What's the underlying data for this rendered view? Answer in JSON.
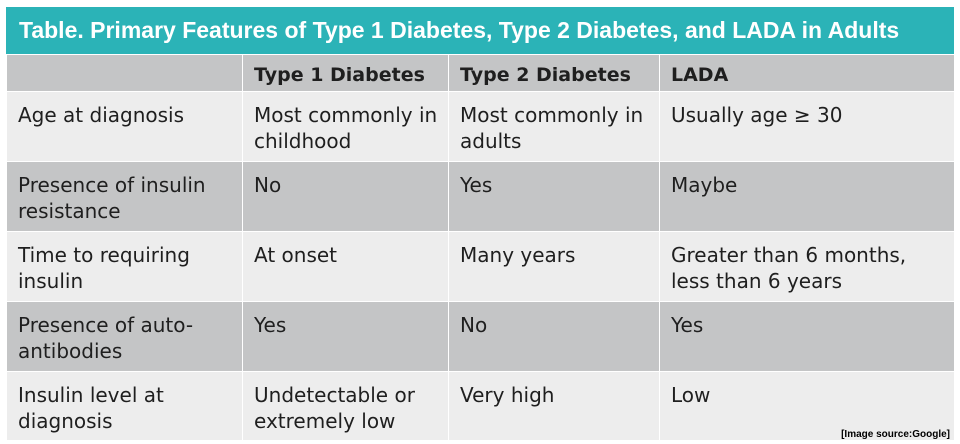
{
  "title": "Table. Primary Features of Type 1 Diabetes, Type 2 Diabetes, and LADA in Adults",
  "table": {
    "headers": [
      "",
      "Type 1 Diabetes",
      "Type 2 Diabetes",
      "LADA"
    ],
    "rows": [
      {
        "feature": "Age at diagnosis",
        "type1": "Most commonly in childhood",
        "type2": "Most commonly in adults",
        "lada": "Usually age ≥ 30"
      },
      {
        "feature": "Presence of insulin resistance",
        "type1": "No",
        "type2": "Yes",
        "lada": "Maybe"
      },
      {
        "feature": "Time to requiring insulin",
        "type1": "At onset",
        "type2": "Many years",
        "lada": "Greater than 6 months, less than 6 years"
      },
      {
        "feature": "Presence of auto-antibodies",
        "type1": "Yes",
        "type2": "No",
        "lada": "Yes"
      },
      {
        "feature": "Insulin level at diagnosis",
        "type1": "Undetectable or extremely low",
        "type2": "Very high",
        "lada": "Low"
      }
    ]
  },
  "source_note": "[Image source:Google]",
  "colors": {
    "title_bar": "#2bb3b7",
    "header_row": "#c4c5c6",
    "row_light": "#ededed",
    "row_dark": "#c4c5c6"
  }
}
